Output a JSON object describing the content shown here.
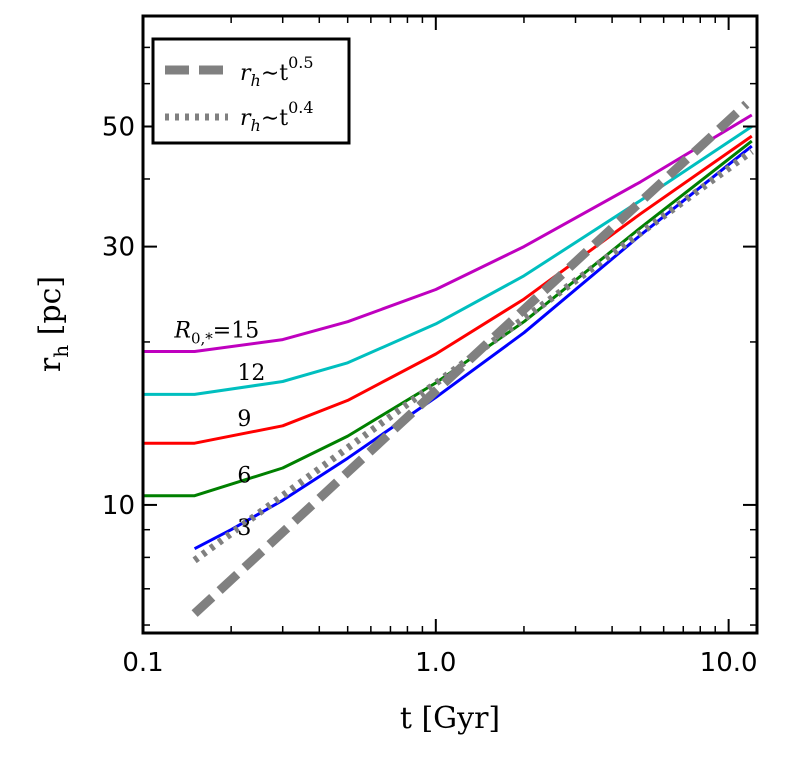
{
  "chart_data": {
    "type": "line",
    "xscale": "log",
    "yscale": "log",
    "xlim": [
      0.1,
      12.5
    ],
    "ylim": [
      5.8,
      80
    ],
    "xlabel": "t [Gyr]",
    "ylabel": "r_h [pc]",
    "xticks": [
      {
        "value": 0.1,
        "label": "0.1"
      },
      {
        "value": 1.0,
        "label": "1.0"
      },
      {
        "value": 10.0,
        "label": "10.0"
      }
    ],
    "yticks": [
      {
        "value": 10,
        "label": "10"
      },
      {
        "value": 30,
        "label": "30"
      },
      {
        "value": 50,
        "label": "50"
      }
    ],
    "series": [
      {
        "name": "R0=3",
        "label": "3",
        "color": "#0000ff",
        "style": "solid",
        "x": [
          0.15,
          0.2,
          0.3,
          0.5,
          1.0,
          2.0,
          5.0,
          12.0
        ],
        "y": [
          8.3,
          9.0,
          10.2,
          12.2,
          15.8,
          20.8,
          31.5,
          46.0
        ]
      },
      {
        "name": "R0=6",
        "label": "6",
        "color": "#008000",
        "style": "solid",
        "x": [
          0.1,
          0.15,
          0.3,
          0.5,
          1.0,
          2.0,
          5.0,
          12.0
        ],
        "y": [
          10.4,
          10.4,
          11.7,
          13.4,
          16.8,
          21.8,
          32.5,
          47.0
        ]
      },
      {
        "name": "R0=9",
        "label": "9",
        "color": "#ff0000",
        "style": "solid",
        "x": [
          0.1,
          0.15,
          0.3,
          0.5,
          1.0,
          2.0,
          5.0,
          12.0
        ],
        "y": [
          13.0,
          13.0,
          14.0,
          15.6,
          19.0,
          24.0,
          34.5,
          48.0
        ]
      },
      {
        "name": "R0=12",
        "label": "12",
        "color": "#00bfbf",
        "style": "solid",
        "x": [
          0.1,
          0.15,
          0.3,
          0.5,
          1.0,
          2.0,
          5.0,
          12.0
        ],
        "y": [
          16.0,
          16.0,
          16.9,
          18.3,
          21.6,
          26.5,
          36.5,
          50.0
        ]
      },
      {
        "name": "R0=15",
        "label": "R_{0,*}=15",
        "color": "#bf00bf",
        "style": "solid",
        "x": [
          0.1,
          0.15,
          0.3,
          0.5,
          1.0,
          2.0,
          5.0,
          12.0
        ],
        "y": [
          19.2,
          19.2,
          20.2,
          21.8,
          25.0,
          30.0,
          39.5,
          52.5
        ]
      },
      {
        "name": "rh ~ t^0.5",
        "color": "#808080",
        "style": "dashed",
        "x": [
          0.15,
          11.5
        ],
        "y": [
          6.3,
          55.0
        ]
      },
      {
        "name": "rh ~ t^0.4",
        "color": "#808080",
        "style": "dotted",
        "x": [
          0.15,
          12.0
        ],
        "y": [
          7.9,
          45.0
        ]
      }
    ],
    "curve_labels": [
      {
        "text": "R",
        "sub": "0,*",
        "suffix": "=15",
        "x": 0.128,
        "y": 20.4
      },
      {
        "text": "12",
        "x": 0.21,
        "y": 17.0
      },
      {
        "text": "9",
        "x": 0.21,
        "y": 14.0
      },
      {
        "text": "6",
        "x": 0.21,
        "y": 11.0
      },
      {
        "text": "3",
        "x": 0.21,
        "y": 8.8
      }
    ],
    "legend": {
      "position": "top-left",
      "entries": [
        {
          "prefix": "r",
          "sub": "h",
          "rel": "∼t",
          "sup": "0.5",
          "style": "dashed"
        },
        {
          "prefix": "r",
          "sub": "h",
          "rel": "∼t",
          "sup": "0.4",
          "style": "dotted"
        }
      ]
    }
  }
}
